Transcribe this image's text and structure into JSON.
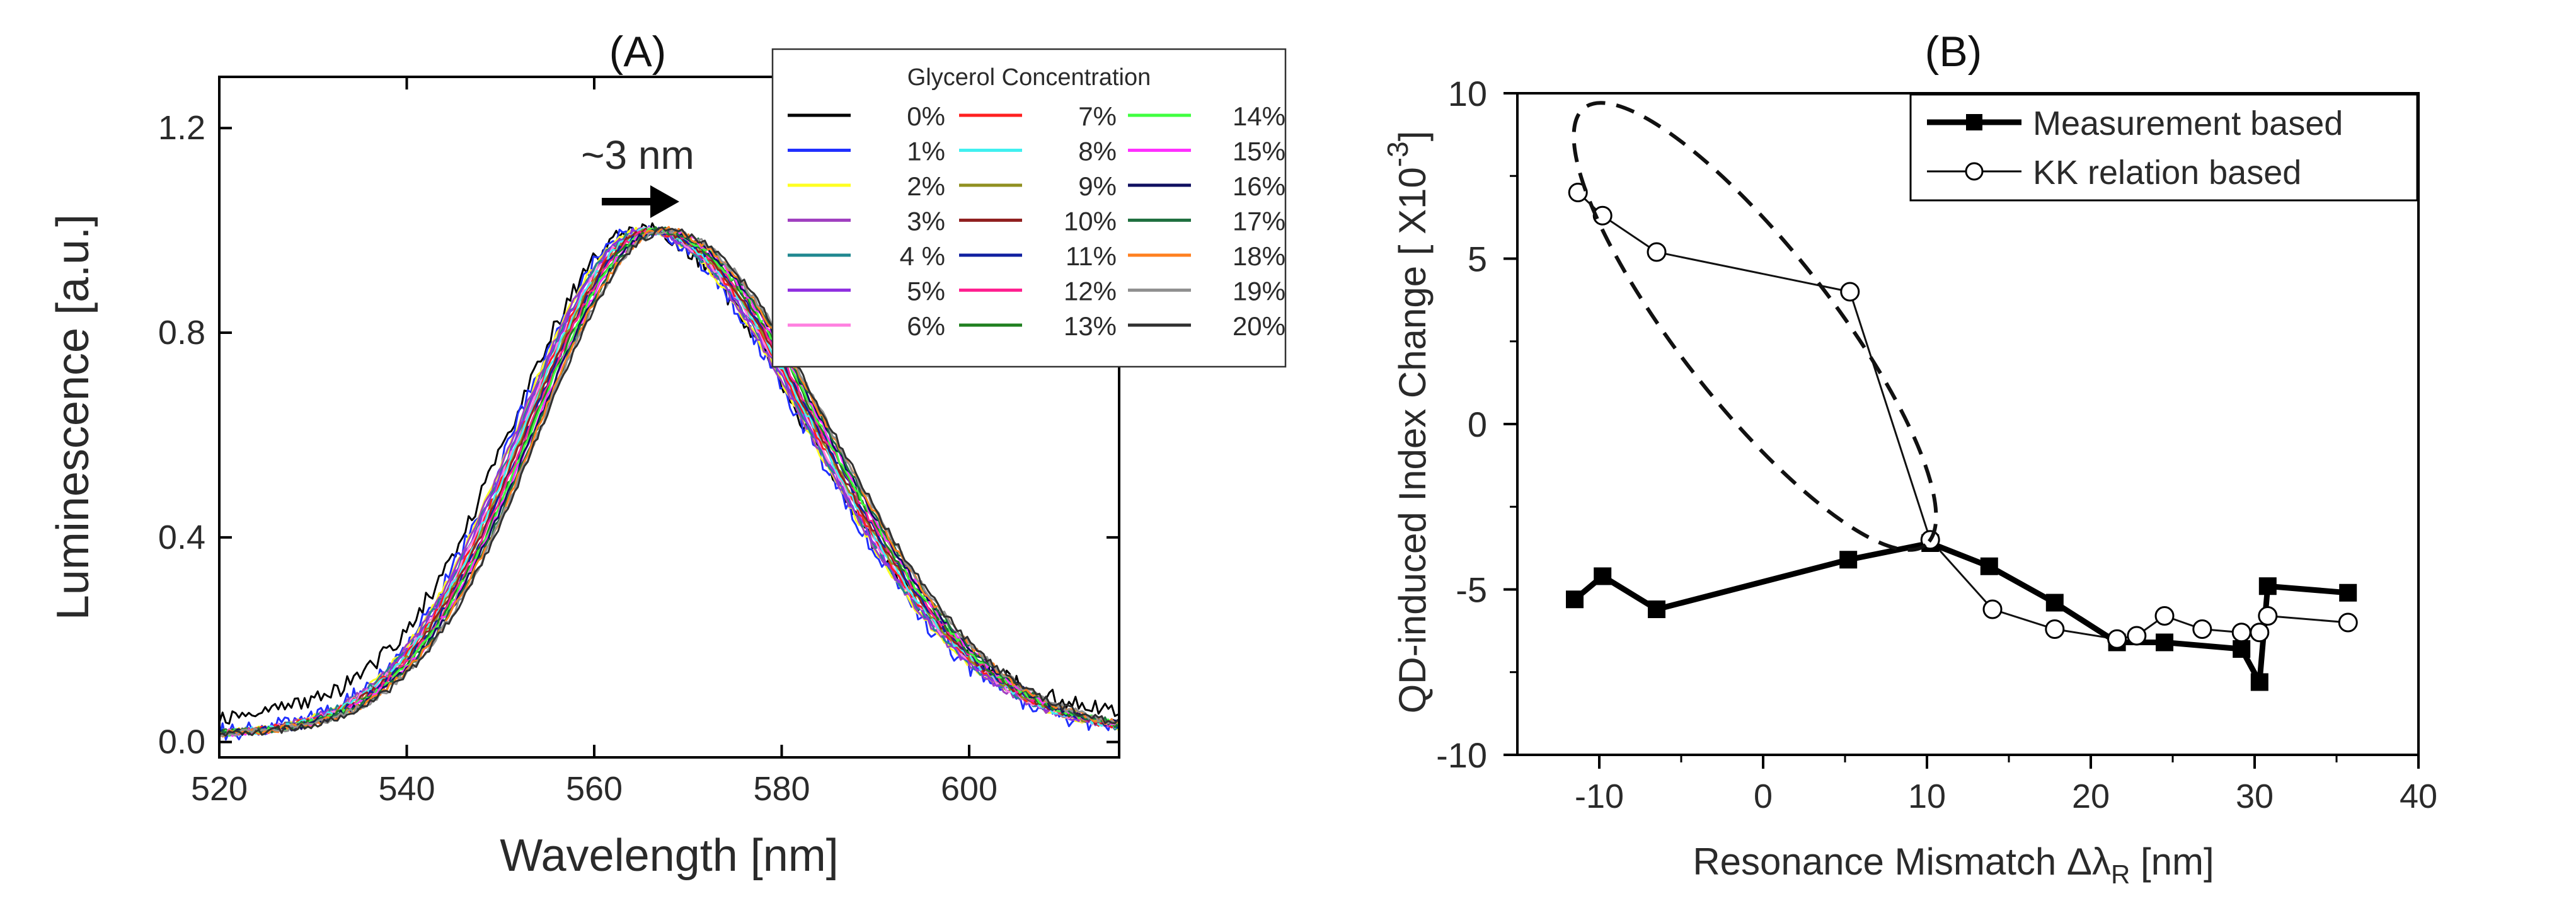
{
  "chart_data": [
    {
      "id": "A",
      "type": "line",
      "panel_label": "(A)",
      "xlabel": "Wavelength [nm]",
      "ylabel": "Luminescence [a.u.]",
      "xlim": [
        520,
        616
      ],
      "ylim": [
        -0.03,
        1.3
      ],
      "xticks": [
        520,
        540,
        560,
        580,
        600
      ],
      "yticks": [
        0.0,
        0.4,
        0.8,
        1.2
      ],
      "ytick_labels": [
        "0.0",
        "0.4",
        "0.8",
        "1.2"
      ],
      "annotation": {
        "text": "~3 nm",
        "arrow": "right",
        "x": [
          562,
          570
        ],
        "y": 1.07
      },
      "legend": {
        "title": "Glycerol Concentration",
        "entries": [
          {
            "label": "0%",
            "color": "#000000"
          },
          {
            "label": "1%",
            "color": "#2030ff"
          },
          {
            "label": "2%",
            "color": "#ffff20"
          },
          {
            "label": "3%",
            "color": "#a040c0"
          },
          {
            "label": "4 %",
            "color": "#208890"
          },
          {
            "label": "5%",
            "color": "#9030e0"
          },
          {
            "label": "6%",
            "color": "#ff80e0"
          },
          {
            "label": "7%",
            "color": "#ff2020"
          },
          {
            "label": "8%",
            "color": "#40f0f0"
          },
          {
            "label": "9%",
            "color": "#909020"
          },
          {
            "label": "10%",
            "color": "#902020"
          },
          {
            "label": "11%",
            "color": "#1020a0"
          },
          {
            "label": "12%",
            "color": "#ff2090"
          },
          {
            "label": "13%",
            "color": "#208020"
          },
          {
            "label": "14%",
            "color": "#40ff40"
          },
          {
            "label": "15%",
            "color": "#ff30ff"
          },
          {
            "label": "16%",
            "color": "#101060"
          },
          {
            "label": "17%",
            "color": "#207040"
          },
          {
            "label": "18%",
            "color": "#ff8020"
          },
          {
            "label": "19%",
            "color": "#909090"
          },
          {
            "label": "20%",
            "color": "#303030"
          }
        ]
      },
      "series_model": {
        "description": "Asymmetric Gaussian luminescence peaks normalized to 1.0",
        "peak_wavelengths": [
          564.8,
          565.0,
          565.2,
          565.3,
          565.5,
          565.6,
          565.8,
          565.9,
          566.0,
          566.2,
          566.3,
          566.5,
          566.6,
          566.8,
          566.9,
          567.1,
          567.2,
          567.4,
          567.5,
          567.7,
          567.8
        ],
        "sigma_left": 13.5,
        "sigma_right": 17.5,
        "x_start": 520,
        "x_end": 616
      }
    },
    {
      "id": "B",
      "type": "line",
      "panel_label": "(B)",
      "xlabel": "Resonance Mismatch Δλ",
      "xlabel_sub": "R",
      "xlabel_unit": " [nm]",
      "ylabel": "QD-induced Index Change [ X10",
      "ylabel_sup": "-3",
      "ylabel_end": "]",
      "xlim": [
        -15,
        40
      ],
      "ylim": [
        -10,
        10
      ],
      "xticks": [
        -10,
        0,
        10,
        20,
        30,
        40
      ],
      "xtick_labels": [
        "-10",
        "0",
        "10",
        "20",
        "30",
        "40"
      ],
      "yticks": [
        -10,
        -5,
        0,
        5,
        10
      ],
      "ytick_labels": [
        "-10",
        "-5",
        "0",
        "5",
        "10"
      ],
      "series": [
        {
          "name": "Measurement based",
          "marker": "square-filled",
          "x": [
            -11.5,
            -9.8,
            -6.5,
            5.2,
            10.2,
            13.8,
            17.8,
            21.6,
            24.5,
            29.2,
            30.3,
            30.8,
            35.7
          ],
          "y": [
            -5.3,
            -4.6,
            -5.6,
            -4.1,
            -3.6,
            -4.3,
            -5.4,
            -6.6,
            -6.6,
            -6.8,
            -7.8,
            -4.9,
            -5.1
          ]
        },
        {
          "name": "KK relation based",
          "marker": "circle-open",
          "x": [
            -11.3,
            -9.8,
            -6.5,
            5.3,
            10.2,
            14.0,
            17.8,
            21.6,
            22.8,
            24.5,
            26.8,
            29.2,
            30.3,
            30.8,
            35.7
          ],
          "y": [
            7.0,
            6.3,
            5.2,
            4.0,
            -3.5,
            -5.6,
            -6.2,
            -6.5,
            -6.4,
            -5.8,
            -6.2,
            -6.3,
            -6.3,
            -5.8,
            -6.0
          ]
        }
      ],
      "ellipse_annotation": {
        "style": "dashed",
        "note": "highlighted region"
      }
    }
  ]
}
